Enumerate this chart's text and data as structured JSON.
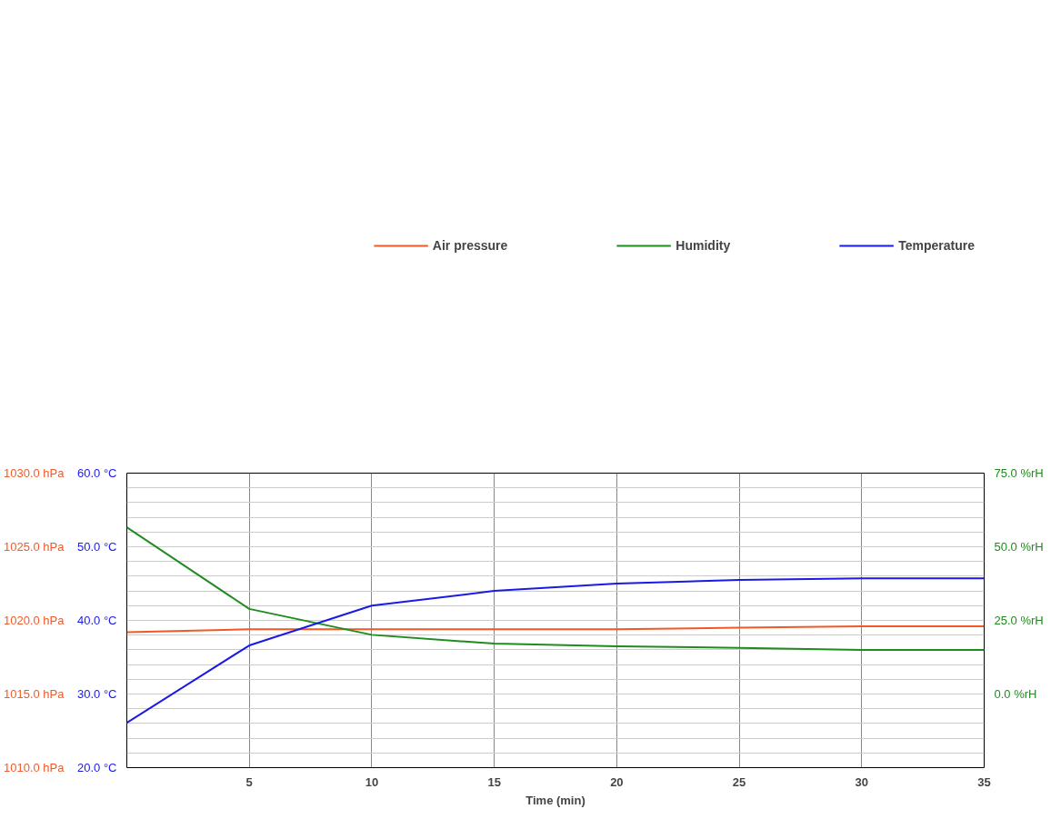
{
  "chart_data": {
    "type": "line",
    "xlabel": "Time (min)",
    "x": [
      0,
      5,
      10,
      15,
      20,
      25,
      30,
      35
    ],
    "series": [
      {
        "name": "Air pressure",
        "color": "#f05a28",
        "axis": "y2",
        "values": [
          1019.2,
          1019.4,
          1019.4,
          1019.4,
          1019.4,
          1019.5,
          1019.6,
          1019.6
        ]
      },
      {
        "name": "Humidity",
        "color": "#1e8c1e",
        "axis": "y3",
        "values": [
          56.6,
          28.9,
          20.1,
          17.1,
          16.2,
          15.7,
          15.0,
          15.0
        ]
      },
      {
        "name": "Temperature",
        "color": "#1a1ae6",
        "values": [
          26.1,
          36.6,
          42.0,
          44.0,
          45.0,
          45.5,
          45.7,
          45.7
        ]
      }
    ],
    "xlim": [
      0,
      35
    ],
    "xticks": [
      5,
      10,
      15,
      20,
      25,
      30,
      35
    ],
    "ylim": [
      20,
      60
    ],
    "yticks": [
      {
        "value": 20,
        "label": "20.0 °C"
      },
      {
        "value": 22,
        "label": null
      },
      {
        "value": 24,
        "label": null
      },
      {
        "value": 26,
        "label": null
      },
      {
        "value": 28,
        "label": null
      },
      {
        "value": 30,
        "label": "30.0 °C"
      },
      {
        "value": 32,
        "label": null
      },
      {
        "value": 34,
        "label": null
      },
      {
        "value": 36,
        "label": null
      },
      {
        "value": 38,
        "label": null
      },
      {
        "value": 40,
        "label": "40.0 °C"
      },
      {
        "value": 42,
        "label": null
      },
      {
        "value": 44,
        "label": null
      },
      {
        "value": 46,
        "label": null
      },
      {
        "value": 48,
        "label": null
      },
      {
        "value": 50,
        "label": "50.0 °C"
      },
      {
        "value": 52,
        "label": null
      },
      {
        "value": 54,
        "label": null
      },
      {
        "value": 56,
        "label": null
      },
      {
        "value": 58,
        "label": null
      },
      {
        "value": 60,
        "label": "60.0 °C"
      }
    ],
    "y2lim": [
      1010,
      1030
    ],
    "y2ticks": [
      {
        "value": 1010,
        "label": "1010.0 hPa"
      },
      {
        "value": 1015,
        "label": "1015.0 hPa"
      },
      {
        "value": 1020,
        "label": "1020.0 hPa"
      },
      {
        "value": 1025,
        "label": "1025.0 hPa"
      },
      {
        "value": 1030,
        "label": "1030.0 hPa"
      }
    ],
    "y3lim": [
      -25,
      75
    ],
    "y3ticks": [
      {
        "value": 0,
        "label": "0.0 %rH"
      },
      {
        "value": 25,
        "label": "25.0 %rH"
      },
      {
        "value": 50,
        "label": "50.0 %rH"
      },
      {
        "value": 75,
        "label": "75.0 %rH"
      }
    ],
    "grid": true,
    "legend": "top",
    "marker": "none",
    "line_style": "solid"
  }
}
